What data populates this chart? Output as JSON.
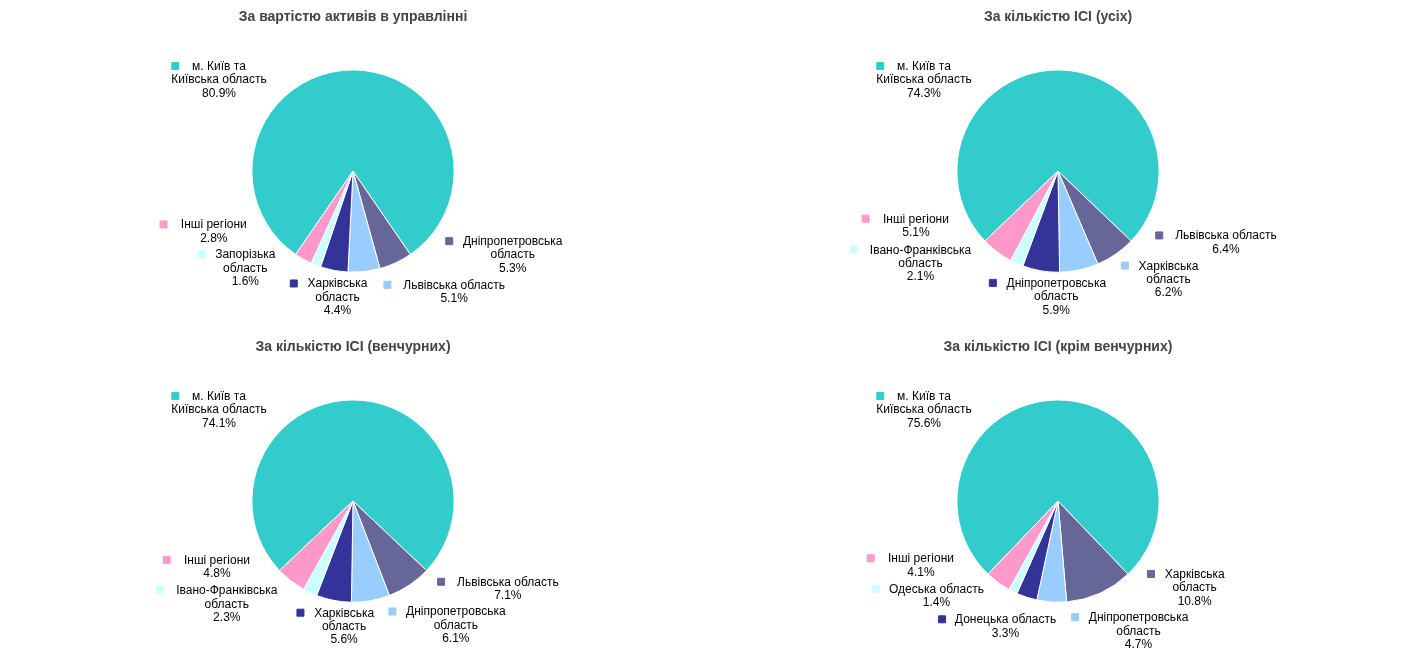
{
  "chart_data": [
    {
      "type": "pie",
      "title": "За вартістю активів в управлінні",
      "categories": [
        "м. Київ та Київська область",
        "Дніпропетровська область",
        "Львівська область",
        "Харківська область",
        "Запорізька область",
        "Інші регіони"
      ],
      "values": [
        80.9,
        5.3,
        5.1,
        4.4,
        1.6,
        2.8
      ],
      "colors": [
        "#33cccc",
        "#666699",
        "#99ccff",
        "#333399",
        "#ccffff",
        "#ff99cc"
      ],
      "value_labels": [
        "80.9%",
        "5.3%",
        "5.1%",
        "4.4%",
        "1.6%",
        "2.8%"
      ],
      "legend": "bottom right"
    },
    {
      "type": "pie",
      "title": "За кількістю ІСІ (усіх)",
      "categories": [
        "м. Київ та Київська область",
        "Львівська область",
        "Харківська область",
        "Дніпропетровська область",
        "Івано-Франківська область",
        "Інші регіони"
      ],
      "values": [
        74.3,
        6.4,
        6.2,
        5.9,
        2.1,
        5.1
      ],
      "colors": [
        "#33cccc",
        "#666699",
        "#99ccff",
        "#333399",
        "#ccffff",
        "#ff99cc"
      ],
      "value_labels": [
        "74.3%",
        "6.4%",
        "6.2%",
        "5.9%",
        "2.1%",
        "5.1%"
      ],
      "legend": "bottom right"
    },
    {
      "type": "pie",
      "title": "За кількістю ІСІ (венчурних)",
      "categories": [
        "м. Київ та Київська область",
        "Львівська область",
        "Дніпропетровська область",
        "Харківська область",
        "Івано-Франківська область",
        "Інші регіони"
      ],
      "values": [
        74.1,
        7.1,
        6.1,
        5.6,
        2.3,
        4.8
      ],
      "colors": [
        "#33cccc",
        "#666699",
        "#99ccff",
        "#333399",
        "#ccffff",
        "#ff99cc"
      ],
      "value_labels": [
        "74.1%",
        "7.1%",
        "6.1%",
        "5.6%",
        "2.3%",
        "4.8%"
      ],
      "legend": "bottom right"
    },
    {
      "type": "pie",
      "title": "За кількістю ІСІ (крім венчурних)",
      "categories": [
        "м. Київ та Київська область",
        "Харківська область",
        "Дніпропетровська область",
        "Донецька область",
        "Одеська область",
        "Інші регіони"
      ],
      "values": [
        75.6,
        10.8,
        4.7,
        3.3,
        1.4,
        4.1
      ],
      "colors": [
        "#33cccc",
        "#666699",
        "#99ccff",
        "#333399",
        "#ccffff",
        "#ff99cc"
      ],
      "value_labels": [
        "75.6%",
        "10.8%",
        "4.7%",
        "3.3%",
        "1.4%",
        "4.1%"
      ],
      "legend": "bottom left"
    }
  ]
}
